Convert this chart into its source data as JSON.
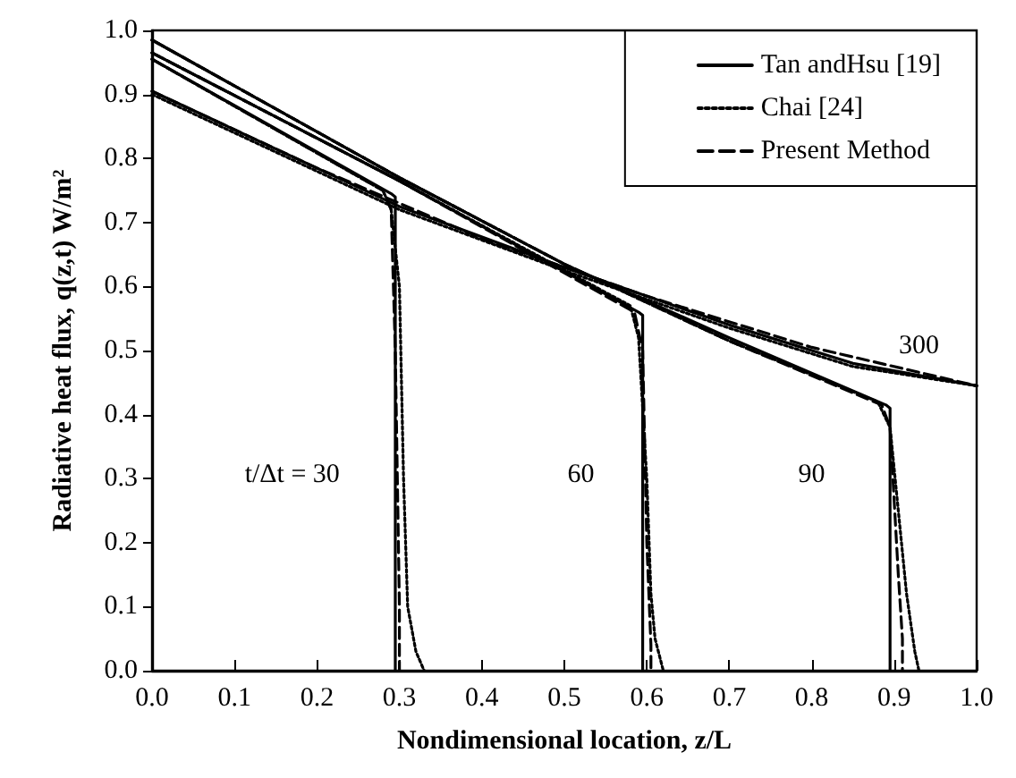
{
  "chart_data": {
    "type": "line",
    "xlabel": "Nondimensional location, z/L",
    "ylabel": "Radiative heat flux, q(z,t) W/m²",
    "xlim": [
      0,
      1
    ],
    "ylim": [
      0,
      1
    ],
    "xticks": [
      {
        "value": 0,
        "label": "0.0"
      },
      0.1,
      0.2,
      0.3,
      0.4,
      0.5,
      0.6,
      0.7,
      0.8,
      0.9,
      {
        "value": 1,
        "label": "1.0"
      }
    ],
    "yticks": [
      {
        "value": 0,
        "label": "0.0"
      },
      0.1,
      0.2,
      0.3,
      0.4,
      0.5,
      0.6,
      0.7,
      0.8,
      0.9,
      {
        "value": 1,
        "label": "1.0"
      }
    ],
    "grid": false,
    "legend": "top right",
    "marker": "none",
    "series": [
      {
        "name": "Tan andHsu [19]",
        "color": "#000000",
        "line_style": "solid",
        "x": [
          0,
          0.29,
          0.295,
          0.295
        ],
        "values": [
          0.955,
          0.745,
          0.74,
          0
        ]
      },
      {
        "color": "#000000",
        "line_style": "solid",
        "x": [
          0,
          0.3,
          0.59,
          0.595,
          0.595
        ],
        "values": [
          0.965,
          0.765,
          0.56,
          0.555,
          0
        ]
      },
      {
        "color": "#000000",
        "line_style": "solid",
        "x": [
          0,
          0.3,
          0.5,
          0.7,
          0.89,
          0.895,
          0.895
        ],
        "values": [
          0.985,
          0.77,
          0.635,
          0.52,
          0.415,
          0.41,
          0
        ]
      },
      {
        "color": "#000000",
        "line_style": "solid",
        "x": [
          0,
          0.3,
          0.5,
          0.7,
          0.85,
          1
        ],
        "values": [
          0.905,
          0.725,
          0.63,
          0.54,
          0.48,
          0.445
        ]
      },
      {
        "name": "Chai [24]",
        "color": "#000000",
        "line_style": "dotted",
        "x": [
          0,
          0.28,
          0.29,
          0.3,
          0.305,
          0.31,
          0.32,
          0.33
        ],
        "values": [
          0.955,
          0.75,
          0.72,
          0.6,
          0.3,
          0.1,
          0.03,
          0
        ]
      },
      {
        "color": "#000000",
        "line_style": "dotted",
        "x": [
          0,
          0.3,
          0.58,
          0.59,
          0.6,
          0.605,
          0.61,
          0.62
        ],
        "values": [
          0.965,
          0.765,
          0.57,
          0.52,
          0.3,
          0.12,
          0.05,
          0
        ]
      },
      {
        "color": "#000000",
        "line_style": "dotted",
        "x": [
          0,
          0.3,
          0.5,
          0.7,
          0.88,
          0.895,
          0.905,
          0.915,
          0.925,
          0.93
        ],
        "values": [
          0.985,
          0.77,
          0.635,
          0.515,
          0.42,
          0.38,
          0.25,
          0.12,
          0.03,
          0
        ]
      },
      {
        "color": "#000000",
        "line_style": "dotted",
        "x": [
          0,
          0.3,
          0.5,
          0.7,
          0.85,
          1
        ],
        "values": [
          0.9,
          0.72,
          0.625,
          0.535,
          0.475,
          0.445
        ]
      },
      {
        "name": "Present Method",
        "color": "#000000",
        "line_style": "dashed",
        "x": [
          0,
          0.28,
          0.29,
          0.295,
          0.3,
          0.3
        ],
        "values": [
          0.955,
          0.75,
          0.72,
          0.5,
          0.1,
          0
        ]
      },
      {
        "color": "#000000",
        "line_style": "dashed",
        "x": [
          0,
          0.3,
          0.585,
          0.595,
          0.6,
          0.605,
          0.605
        ],
        "values": [
          0.965,
          0.765,
          0.56,
          0.5,
          0.2,
          0.04,
          0
        ]
      },
      {
        "color": "#000000",
        "line_style": "dashed",
        "x": [
          0,
          0.3,
          0.5,
          0.7,
          0.885,
          0.895,
          0.905,
          0.91,
          0.91
        ],
        "values": [
          0.985,
          0.77,
          0.635,
          0.515,
          0.415,
          0.38,
          0.15,
          0.05,
          0
        ]
      },
      {
        "color": "#000000",
        "line_style": "dashed",
        "x": [
          0,
          0.2,
          0.4,
          0.6,
          0.8,
          1
        ],
        "values": [
          0.905,
          0.785,
          0.675,
          0.585,
          0.505,
          0.445
        ]
      }
    ],
    "annotations": [
      "t/Δt = 30",
      "60",
      "90",
      "300"
    ]
  }
}
